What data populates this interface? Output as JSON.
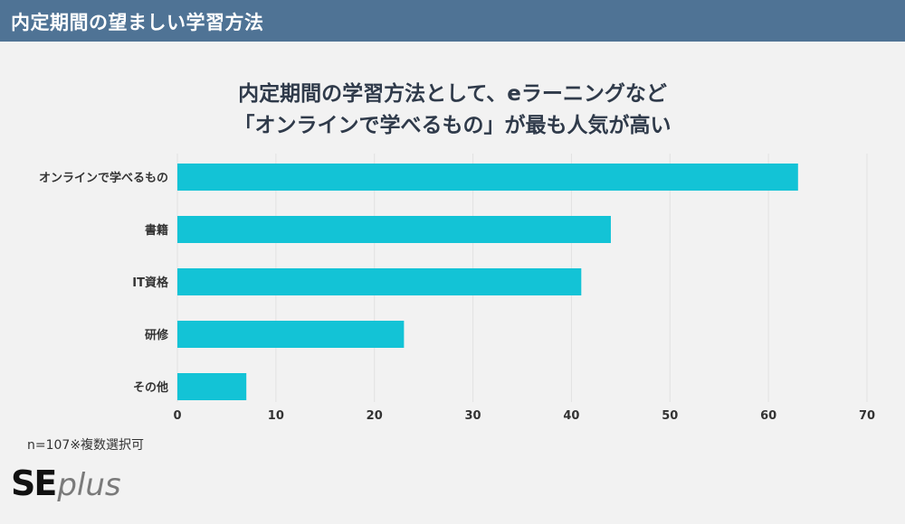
{
  "header": {
    "title": "内定期間の望ましい学習方法"
  },
  "chart_data": {
    "type": "bar",
    "orientation": "horizontal",
    "title": [
      "内定期間の学習方法として、eラーニングなど",
      "「オンラインで学べるもの」が最も人気が高い"
    ],
    "categories": [
      "オンラインで学べるもの",
      "書籍",
      "IT資格",
      "研修",
      "その他"
    ],
    "values": [
      63,
      44,
      41,
      23,
      7
    ],
    "xlim": [
      0,
      70
    ],
    "xticks": [
      0,
      10,
      20,
      30,
      40,
      50,
      60,
      70
    ],
    "xlabel": "",
    "ylabel": "",
    "grid": true,
    "bar_color": "#13c3d6"
  },
  "footnote": "n=107※複数選択可",
  "logo": {
    "text_bold": "SE",
    "text_light": "plus"
  }
}
